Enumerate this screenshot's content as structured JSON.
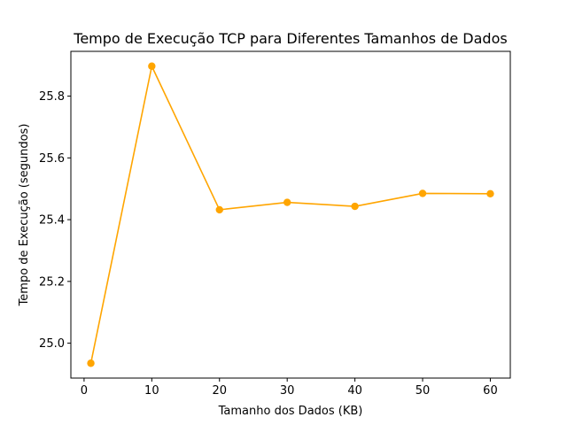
{
  "chart_data": {
    "type": "line",
    "title": "Tempo de Execução TCP para Diferentes Tamanhos de Dados",
    "xlabel": "Tamanho dos Dados (KB)",
    "ylabel": "Tempo de Execução (segundos)",
    "x": [
      1,
      10,
      20,
      30,
      40,
      50,
      60
    ],
    "y": [
      24.935,
      25.897,
      25.432,
      25.456,
      25.443,
      25.485,
      25.484
    ],
    "xlim": [
      -1.95,
      62.95
    ],
    "ylim": [
      24.887,
      25.945
    ],
    "xticks": [
      0,
      10,
      20,
      30,
      40,
      50,
      60
    ],
    "xtick_labels": [
      "0",
      "10",
      "20",
      "30",
      "40",
      "50",
      "60"
    ],
    "yticks": [
      25.0,
      25.2,
      25.4,
      25.6,
      25.8
    ],
    "ytick_labels": [
      "25.0",
      "25.2",
      "25.4",
      "25.6",
      "25.8"
    ],
    "grid": false,
    "marker": "circle",
    "colors": {
      "line": "#ffa500",
      "axes": "#000000",
      "background": "#ffffff"
    }
  }
}
